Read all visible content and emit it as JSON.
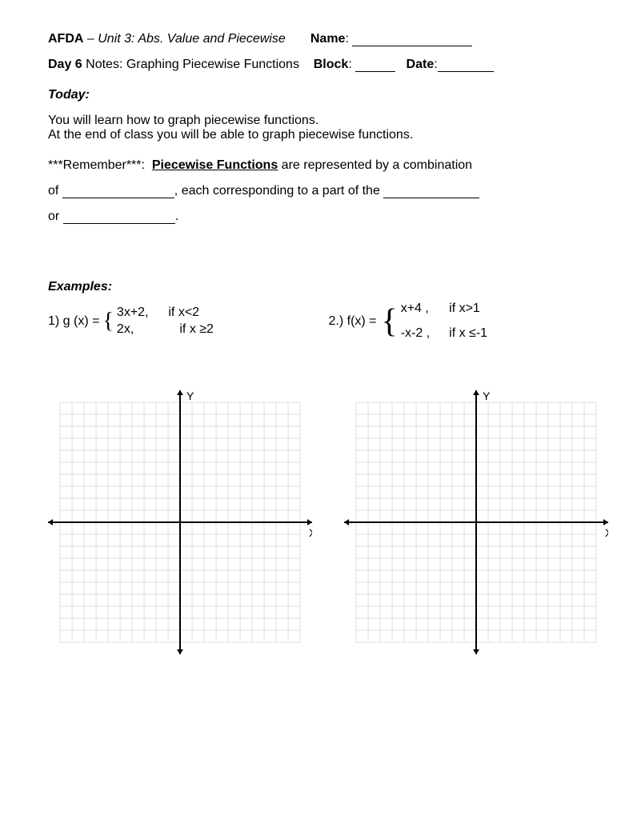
{
  "header": {
    "course": "AFDA",
    "unit": "– Unit 3: Abs. Value and Piecewise",
    "name_label": "Name",
    "day_label": "Day 6",
    "day_text": "Notes: Graphing Piecewise Functions",
    "block_label": "Block",
    "date_label": "Date"
  },
  "today": {
    "heading": "Today:",
    "line1": "You will learn how to graph piecewise functions.",
    "line2": "At the end of class you will be able to graph piecewise functions."
  },
  "remember": {
    "prefix": "***Remember***:",
    "term": "Piecewise Functions",
    "after_term": "are represented by a combination",
    "of_label": "of",
    "after_blank1": ", each corresponding to a part of the",
    "or_label": "or",
    "period": "."
  },
  "examples": {
    "heading": "Examples:",
    "ex1": {
      "label": "1) g (x) =",
      "piece1_func": "3x+2,",
      "piece1_cond": "if x<2",
      "piece2_func": "2x,",
      "piece2_cond": "if  x ≥2"
    },
    "ex2": {
      "label": "2.)  f(x)  =",
      "piece1_func": "x+4 ,",
      "piece1_cond": "if x>1",
      "piece2_func": "-x-2 ,",
      "piece2_cond": "if x ≤-1"
    }
  },
  "graph": {
    "x_label": "X",
    "y_label": "Y",
    "xlim": [
      -10,
      10
    ],
    "ylim": [
      -10,
      10
    ],
    "grid_step": 1,
    "grid_color": "#c0c0c0",
    "axis_color": "#000000",
    "axis_width": 2,
    "grid_width": 0.5,
    "background": "#ffffff",
    "arrow_size": 6
  }
}
